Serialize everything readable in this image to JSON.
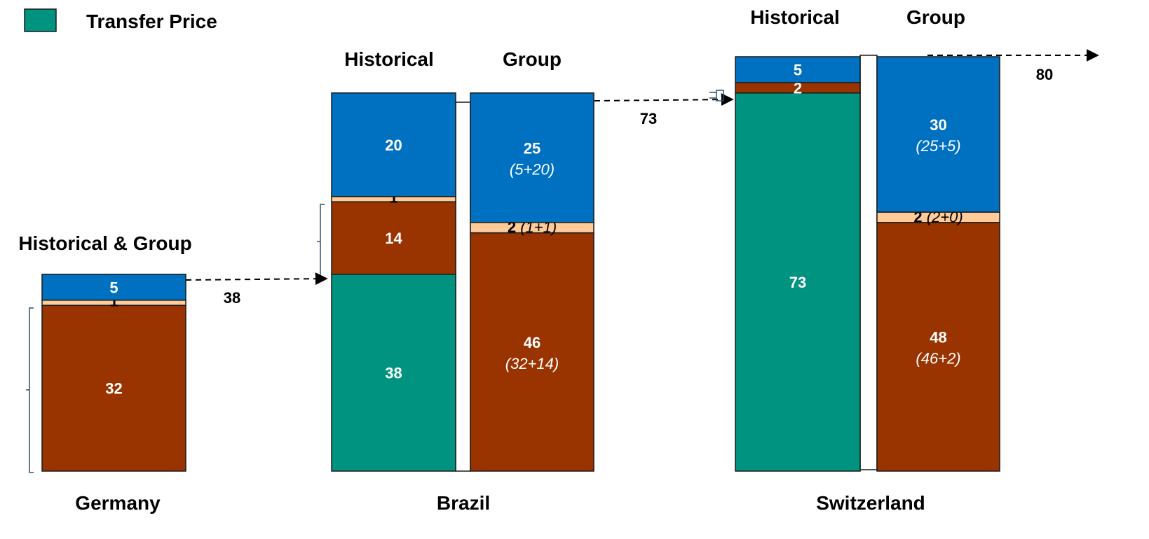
{
  "legend": {
    "label": "Transfer Price"
  },
  "colors": {
    "transfer": "#00937F",
    "brown": "#993300",
    "peach": "#FFCC99",
    "blue": "#0070C0",
    "gap": "#FFFFFF",
    "border": "#1A1A1A"
  },
  "arrows": [
    {
      "label": "38"
    },
    {
      "label": "73"
    },
    {
      "label": "80"
    }
  ],
  "chart_data": {
    "type": "bar",
    "subtype": "stacked",
    "grid": false,
    "legend_position": "top-left",
    "ylim": [
      0,
      80
    ],
    "legend": [
      "Transfer Price"
    ],
    "panels": [
      {
        "country": "Germany",
        "header": "Historical & Group",
        "bars": [
          {
            "name": "",
            "segments": [
              {
                "color": "brown",
                "value": 32,
                "label": "32",
                "sub": ""
              },
              {
                "color": "peach",
                "value": 1,
                "label": "1",
                "sub": ""
              },
              {
                "color": "blue",
                "value": 5,
                "label": "5",
                "sub": ""
              }
            ]
          }
        ]
      },
      {
        "country": "Brazil",
        "header": "",
        "bars": [
          {
            "name": "Historical",
            "segments": [
              {
                "color": "transfer",
                "value": 38,
                "label": "38",
                "sub": ""
              },
              {
                "color": "brown",
                "value": 14,
                "label": "14",
                "sub": ""
              },
              {
                "color": "peach",
                "value": 1,
                "label": "1",
                "sub": ""
              },
              {
                "color": "blue",
                "value": 20,
                "label": "20",
                "sub": ""
              }
            ]
          },
          {
            "name": "Group",
            "segments": [
              {
                "color": "brown",
                "value": 46,
                "label": "46",
                "sub": "(32+14)"
              },
              {
                "color": "peach",
                "value": 2,
                "label": "2",
                "sub": "(1+1)"
              },
              {
                "color": "blue",
                "value": 25,
                "label": "25",
                "sub": "(5+20)"
              }
            ]
          }
        ]
      },
      {
        "country": "Switzerland",
        "header": "",
        "bars": [
          {
            "name": "Historical",
            "segments": [
              {
                "color": "transfer",
                "value": 73,
                "label": "73",
                "sub": ""
              },
              {
                "color": "brown",
                "value": 2,
                "label": "2",
                "sub": ""
              },
              {
                "color": "blue",
                "value": 5,
                "label": "5",
                "sub": ""
              }
            ]
          },
          {
            "name": "Group",
            "segments": [
              {
                "color": "brown",
                "value": 48,
                "label": "48",
                "sub": "(46+2)"
              },
              {
                "color": "peach",
                "value": 2,
                "label": "2",
                "sub": "(2+0)"
              },
              {
                "color": "blue",
                "value": 30,
                "label": "30",
                "sub": "(25+5)"
              }
            ]
          }
        ]
      }
    ]
  }
}
